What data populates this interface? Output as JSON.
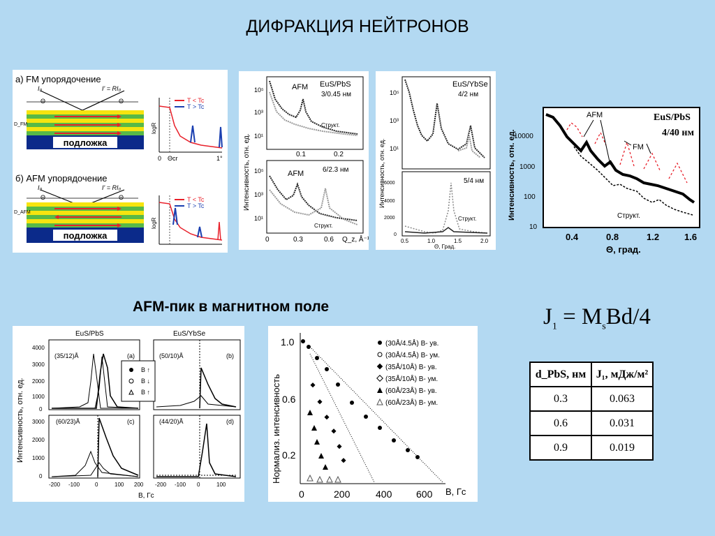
{
  "slide": {
    "title": "ДИФРАКЦИЯ НЕЙТРОНОВ",
    "subtitle": "AFM-пик в магнитном поле",
    "formula": {
      "j": "J",
      "j_sub": "1",
      "eq": " = M",
      "m_sub": "s",
      "rest": "Bd/4"
    }
  },
  "panel_schematic": {
    "fm_title": "а) FM упорядочение",
    "afm_title": "б) AFM упорядочение",
    "substrate": "подложка",
    "d_fm": "D_FM",
    "d_afm": "D_AFM",
    "theta": "Θ",
    "i0": "I₀",
    "ir": "I' = RI₀",
    "legend_below": "T < Tc",
    "legend_above": "T > Tc",
    "logR": "logR",
    "theta_cr": "Θcr",
    "ticks": [
      "0",
      "1°",
      "Θ"
    ],
    "colors": {
      "below_tc": "#e8202a",
      "above_tc": "#1a3fb0",
      "layer_yellow": "#f6e40f",
      "layer_green": "#58b947",
      "substrate": "#0b2a8a"
    }
  },
  "panel_eus_pbs": {
    "top_label_afm": "AFM",
    "top_label_sample": "EuS/PbS",
    "top_label_thick": "3/0.45 нм",
    "top_label_struct": "Структ.",
    "bottom_label_afm": "AFM",
    "bottom_label_thick": "6/2.3 нм",
    "bottom_label_struct": "Структ.",
    "ylabel": "Интенсивность, отн. ед.",
    "xlabel": "Q_z, Å⁻¹",
    "top_xticks": [
      "0.1",
      "0.2"
    ],
    "bottom_xticks": [
      "0",
      "0.3",
      "0.6"
    ],
    "yticks": [
      "10⁵",
      "10³",
      "10¹"
    ]
  },
  "panel_eus_ybse": {
    "sample": "EuS/YbSe",
    "thick_top": "4/2 нм",
    "thick_bottom": "5/4 нм",
    "struct": "Структ.",
    "xlabel": "Θ, Град.",
    "xticks": [
      "0.5",
      "1.0",
      "1.5",
      "2.0"
    ],
    "ylabel": "Интенсивность, отн. ед.",
    "yticks_top": [
      "10⁵",
      "10³",
      "10¹"
    ],
    "yticks_bottom": [
      "6000",
      "4000",
      "2000",
      "0"
    ]
  },
  "panel_right": {
    "sample": "EuS/PbS",
    "thick": "4/40 нм",
    "afm": "AFM",
    "fm": "FM",
    "struct": "Структ.",
    "ylabel": "Интенсивность, отн. ед.",
    "xlabel": "Θ, град.",
    "xticks": [
      "0.4",
      "0.8",
      "1.2",
      "1.6"
    ],
    "yticks": [
      "10000",
      "1000",
      "100",
      "10"
    ]
  },
  "panel_field_peaks": {
    "left_title": "EuS/PbS",
    "right_title": "EuS/YbSe",
    "a": "(a)",
    "b": "(b)",
    "c": "(c)",
    "d": "(d)",
    "sa": "(35/12)Å",
    "sb": "(50/10)Å",
    "sc": "(60/23)Å",
    "sd": "(44/20)Å",
    "ylabel": "Интенсивность, отн. ед.",
    "xlabel": "B, Гс",
    "xticks": [
      "-200",
      "-100",
      "0",
      "100",
      "200"
    ],
    "yticks_top": [
      "4000",
      "3000",
      "2000",
      "1000",
      "0"
    ],
    "yticks_bottom": [
      "3000",
      "2000",
      "1000",
      "0"
    ],
    "legend": [
      "B ↑",
      "B ↓",
      "B ↑"
    ]
  },
  "panel_normalized": {
    "ylabel": "Нормализ. интенсивность",
    "xlabel": "B, Гс",
    "xticks": [
      "0",
      "200",
      "400",
      "600"
    ],
    "yticks": [
      "1.0",
      "0.6",
      "0.2"
    ],
    "legend": [
      "(30Å/4.5Å) B- ув.",
      "(30Å/4.5Å) B- ум.",
      "(35Å/10Å) B- ув.",
      "(35Å/10Å) B- ум.",
      "(60Å/23Å) B- ув.",
      "(60Å/23Å) B- ум."
    ]
  },
  "exchange_table": {
    "headers": [
      "d_PbS, нм",
      "J₁, мДж/м²"
    ],
    "rows": [
      [
        "0.3",
        "0.063"
      ],
      [
        "0.6",
        "0.031"
      ],
      [
        "0.9",
        "0.019"
      ]
    ]
  }
}
